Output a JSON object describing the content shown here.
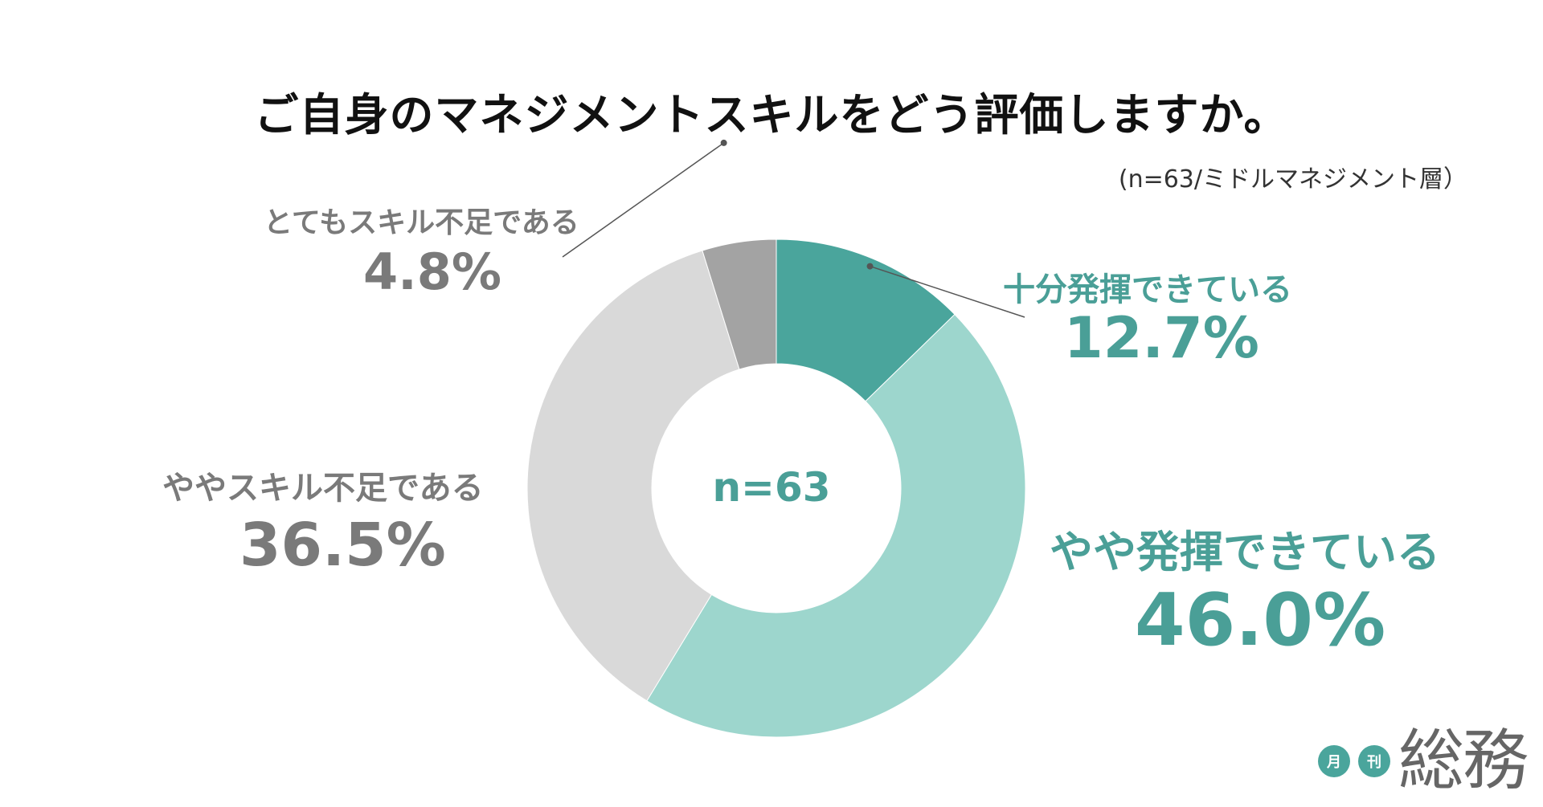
{
  "chart_data": {
    "type": "pie",
    "variant": "donut",
    "title": "ご自身のマネジメントスキルをどう評価しますか。",
    "subtitle": "(n=63/ミドルマネジメント層）",
    "center_label": "n=63",
    "unit": "%",
    "slices": [
      {
        "label": "十分発揮できている",
        "value": 12.7,
        "value_label": "12.7%",
        "color": "#4aa59c"
      },
      {
        "label": "やや発揮できている",
        "value": 46.0,
        "value_label": "46.0%",
        "color": "#9dd6cd"
      },
      {
        "label": "ややスキル不足である",
        "value": 36.5,
        "value_label": "36.5%",
        "color": "#d9d9d9"
      },
      {
        "label": "とてもスキル不足である",
        "value": 4.8,
        "value_label": "4.8%",
        "color": "#a3a3a3"
      }
    ],
    "start_angle": "12 o'clock",
    "direction": "clockwise"
  },
  "logo": {
    "badge_1": "月",
    "badge_2": "刊",
    "name": "総務"
  },
  "colors": {
    "teal_text": "#4a9f97",
    "gray_text": "#7a7a7a",
    "leader_line": "#555555"
  }
}
